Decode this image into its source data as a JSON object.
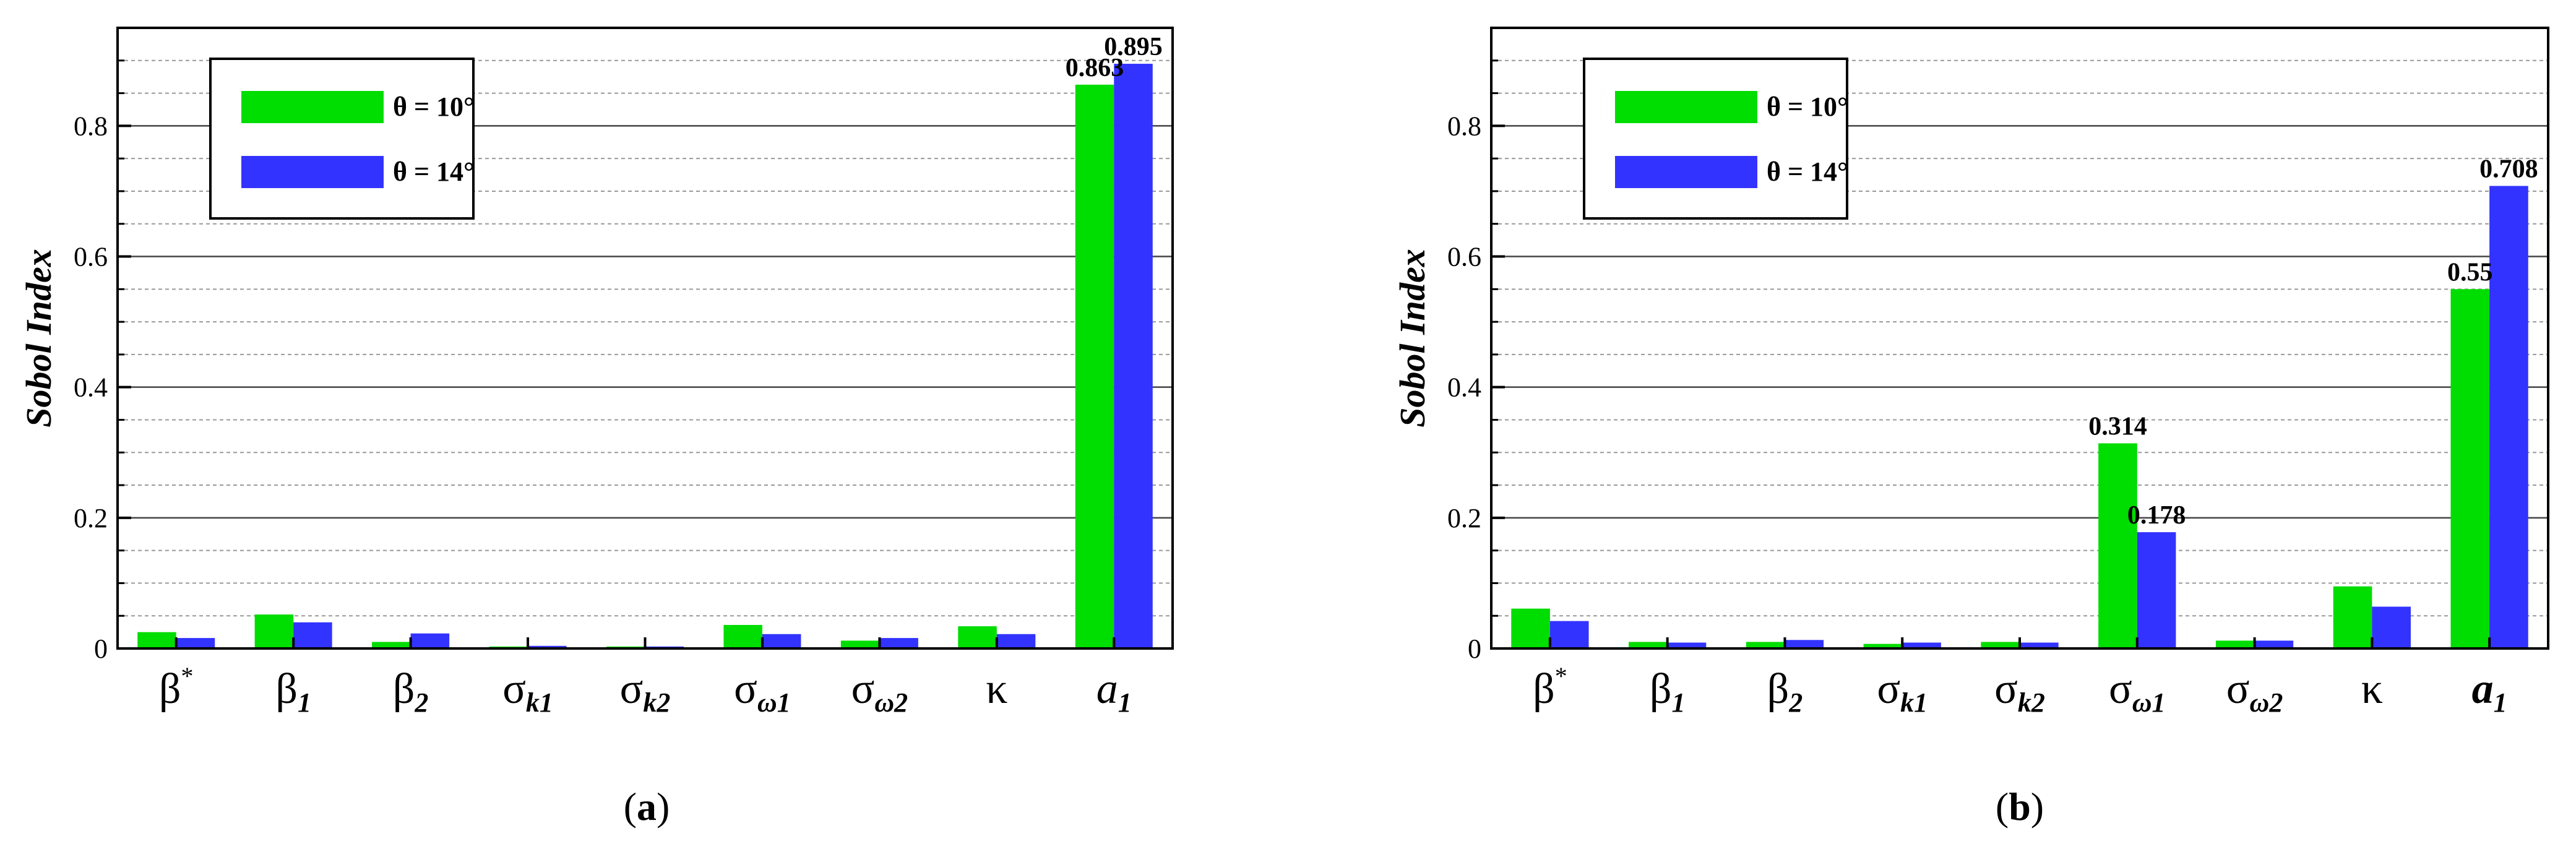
{
  "colors": {
    "series_a": "#00dd00",
    "series_b": "#3333ff",
    "major_grid": "#444444",
    "minor_grid": "#999999"
  },
  "chart_data": [
    {
      "type": "bar",
      "panel_caption": "(a)",
      "ylabel": "Sobol Index",
      "ylim": [
        0,
        0.95
      ],
      "yticks": [
        0,
        0.2,
        0.4,
        0.6,
        0.8
      ],
      "yticks_labels": [
        "0",
        "0.2",
        "0.4",
        "0.6",
        "0.8"
      ],
      "grid": true,
      "legend_placement": "top-left",
      "categories": [
        {
          "main": "β",
          "sup": "*",
          "sub": ""
        },
        {
          "main": "β",
          "sup": "",
          "sub": "1"
        },
        {
          "main": "β",
          "sup": "",
          "sub": "2"
        },
        {
          "main": "σ",
          "sup": "",
          "sub": "k1"
        },
        {
          "main": "σ",
          "sup": "",
          "sub": "k2"
        },
        {
          "main": "σ",
          "sup": "",
          "sub": "ω1"
        },
        {
          "main": "σ",
          "sup": "",
          "sub": "ω2"
        },
        {
          "main": "κ",
          "sup": "",
          "sub": ""
        },
        {
          "main": "a",
          "sup": "",
          "sub": "1",
          "italic": true
        }
      ],
      "series": [
        {
          "name": "θ = 10°",
          "values": [
            0.025,
            0.052,
            0.01,
            0.003,
            0.003,
            0.036,
            0.012,
            0.034,
            0.863
          ]
        },
        {
          "name": "θ = 14°",
          "values": [
            0.016,
            0.04,
            0.023,
            0.004,
            0.003,
            0.022,
            0.016,
            0.022,
            0.895
          ]
        }
      ],
      "data_labels": [
        {
          "series": 0,
          "index": 8,
          "text": "0.863"
        },
        {
          "series": 1,
          "index": 8,
          "text": "0.895"
        }
      ]
    },
    {
      "type": "bar",
      "panel_caption": "(b)",
      "ylabel": "Sobol Index",
      "ylim": [
        0,
        0.95
      ],
      "yticks": [
        0,
        0.2,
        0.4,
        0.6,
        0.8
      ],
      "yticks_labels": [
        "0",
        "0.2",
        "0.4",
        "0.6",
        "0.8"
      ],
      "grid": true,
      "legend_placement": "top-left",
      "categories": [
        {
          "main": "β",
          "sup": "*",
          "sub": ""
        },
        {
          "main": "β",
          "sup": "",
          "sub": "1"
        },
        {
          "main": "β",
          "sup": "",
          "sub": "2"
        },
        {
          "main": "σ",
          "sup": "",
          "sub": "k1"
        },
        {
          "main": "σ",
          "sup": "",
          "sub": "k2"
        },
        {
          "main": "σ",
          "sup": "",
          "sub": "ω1"
        },
        {
          "main": "σ",
          "sup": "",
          "sub": "ω2"
        },
        {
          "main": "κ",
          "sup": "",
          "sub": ""
        },
        {
          "main": "a",
          "sup": "",
          "sub": "1",
          "italic": true,
          "bold": true
        }
      ],
      "series": [
        {
          "name": "θ = 10°",
          "values": [
            0.061,
            0.01,
            0.01,
            0.007,
            0.01,
            0.314,
            0.012,
            0.095,
            0.55
          ]
        },
        {
          "name": "θ = 14°",
          "values": [
            0.042,
            0.009,
            0.013,
            0.009,
            0.009,
            0.178,
            0.012,
            0.064,
            0.708
          ]
        }
      ],
      "data_labels": [
        {
          "series": 0,
          "index": 5,
          "text": "0.314"
        },
        {
          "series": 1,
          "index": 5,
          "text": "0.178"
        },
        {
          "series": 0,
          "index": 8,
          "text": "0.55"
        },
        {
          "series": 1,
          "index": 8,
          "text": "0.708"
        }
      ]
    }
  ]
}
